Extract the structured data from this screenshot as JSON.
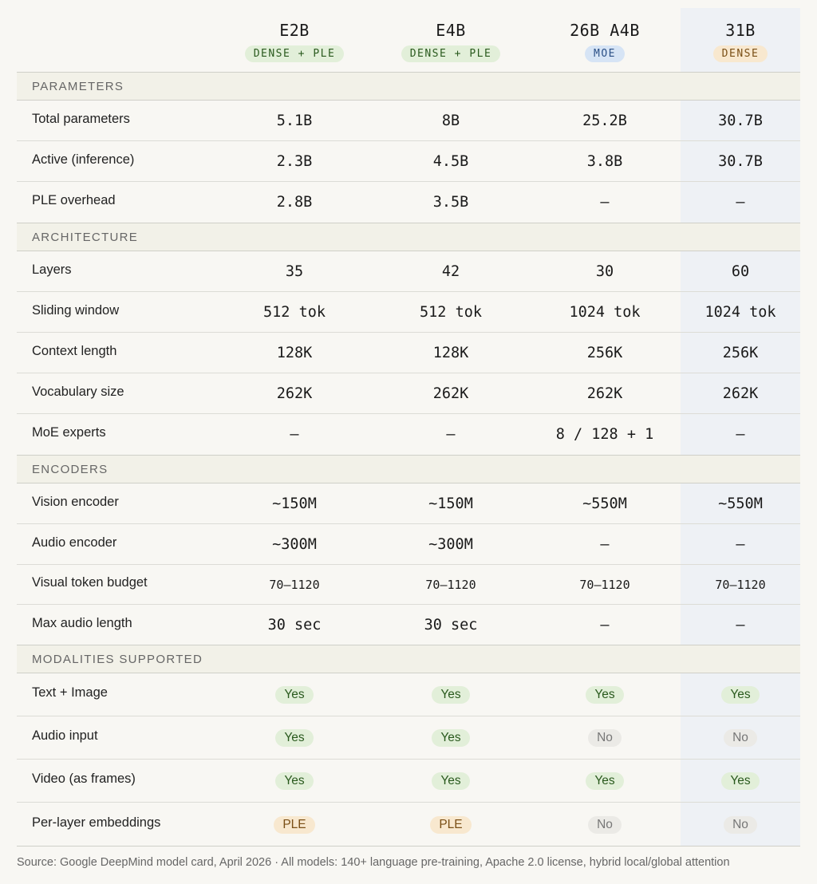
{
  "chart_data": {
    "type": "table",
    "columns": [
      {
        "name": "E2B",
        "tag": "DENSE + PLE",
        "tag_color": "green"
      },
      {
        "name": "E4B",
        "tag": "DENSE + PLE",
        "tag_color": "green"
      },
      {
        "name": "26B A4B",
        "tag": "MOE",
        "tag_color": "blue"
      },
      {
        "name": "31B",
        "tag": "DENSE",
        "tag_color": "orange"
      }
    ],
    "sections": [
      {
        "title": "PARAMETERS",
        "rows": [
          {
            "label": "Total parameters",
            "values": [
              "5.1B",
              "8B",
              "25.2B",
              "30.7B"
            ]
          },
          {
            "label": "Active (inference)",
            "values": [
              "2.3B",
              "4.5B",
              "3.8B",
              "30.7B"
            ]
          },
          {
            "label": "PLE overhead",
            "values": [
              "2.8B",
              "3.5B",
              "—",
              "—"
            ]
          }
        ]
      },
      {
        "title": "ARCHITECTURE",
        "rows": [
          {
            "label": "Layers",
            "values": [
              "35",
              "42",
              "30",
              "60"
            ]
          },
          {
            "label": "Sliding window",
            "values": [
              "512 tok",
              "512 tok",
              "1024 tok",
              "1024 tok"
            ]
          },
          {
            "label": "Context length",
            "values": [
              "128K",
              "128K",
              "256K",
              "256K"
            ]
          },
          {
            "label": "Vocabulary size",
            "values": [
              "262K",
              "262K",
              "262K",
              "262K"
            ]
          },
          {
            "label": "MoE experts",
            "values": [
              "—",
              "—",
              "8 / 128 + 1",
              "—"
            ]
          }
        ]
      },
      {
        "title": "ENCODERS",
        "rows": [
          {
            "label": "Vision encoder",
            "values": [
              "~150M",
              "~150M",
              "~550M",
              "~550M"
            ]
          },
          {
            "label": "Audio encoder",
            "values": [
              "~300M",
              "~300M",
              "—",
              "—"
            ]
          },
          {
            "label": "Visual token budget",
            "values": [
              "70–1120",
              "70–1120",
              "70–1120",
              "70–1120"
            ]
          },
          {
            "label": "Max audio length",
            "values": [
              "30 sec",
              "30 sec",
              "—",
              "—"
            ]
          }
        ]
      },
      {
        "title": "MODALITIES SUPPORTED",
        "rows": [
          {
            "label": "Text + Image",
            "values": [
              "Yes",
              "Yes",
              "Yes",
              "Yes"
            ]
          },
          {
            "label": "Audio input",
            "values": [
              "Yes",
              "Yes",
              "No",
              "No"
            ]
          },
          {
            "label": "Video (as frames)",
            "values": [
              "Yes",
              "Yes",
              "Yes",
              "Yes"
            ]
          },
          {
            "label": "Per-layer embeddings",
            "values": [
              "PLE",
              "PLE",
              "No",
              "No"
            ]
          }
        ]
      }
    ],
    "highlighted_column": "31B",
    "colors": {
      "green": "#e2efd9",
      "blue": "#d6e4f5",
      "orange": "#f8e8cf",
      "highlight": "#eef1f5"
    }
  },
  "footer": "Source: Google DeepMind model card, April 2026 · All models: 140+ language pre-training, Apache 2.0 license, hybrid local/global attention"
}
